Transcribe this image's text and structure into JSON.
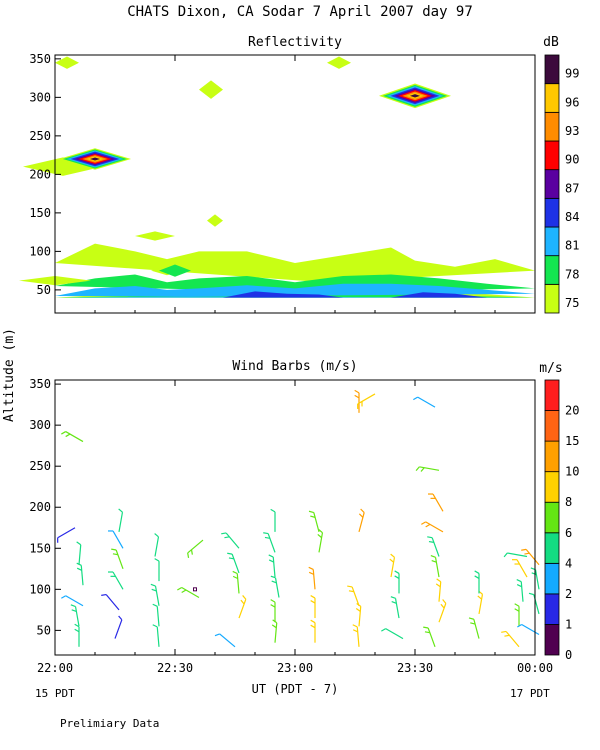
{
  "figure": {
    "title": "CHATS Dixon, CA  Sodar   7 April 2007  day  97",
    "y_axis_label": "Altitude (m)",
    "x_axis_label": "UT  (PDT - 7)",
    "left_date_label": "15 PDT",
    "right_date_label": "17 PDT",
    "footnote": "Prelimiary Data"
  },
  "colors": {
    "reflectivity_scale": [
      "#c8ff14",
      "#14e650",
      "#1eb4ff",
      "#1e32e6",
      "#5a00a0",
      "#ff0000",
      "#ff8c00",
      "#ffc800",
      "#3c0a3c"
    ],
    "wind_scale": [
      "#500050",
      "#2828e6",
      "#14aaff",
      "#14dc82",
      "#64e614",
      "#ffd200",
      "#ffa000",
      "#ff6414",
      "#ff1e1e"
    ]
  },
  "chart_data": [
    {
      "type": "heatmap",
      "title": "Reflectivity",
      "colorbar_unit": "dB",
      "colorbar_ticks": [
        "99",
        "96",
        "93",
        "90",
        "87",
        "84",
        "81",
        "78",
        "75"
      ],
      "x_ticks": [
        "22:00",
        "22:30",
        "23:00",
        "23:30",
        "00:00"
      ],
      "y_ticks": [
        "350",
        "300",
        "250",
        "200",
        "150",
        "100",
        "50"
      ],
      "x_range_minutes_after_2200": [
        0,
        120
      ],
      "ylim": [
        20,
        355
      ],
      "bands": [
        {
          "level": 75,
          "top": [
            [
              0,
              85
            ],
            [
              10,
              110
            ],
            [
              20,
              100
            ],
            [
              28,
              90
            ],
            [
              36,
              100
            ],
            [
              48,
              100
            ],
            [
              60,
              85
            ],
            [
              72,
              95
            ],
            [
              84,
              105
            ],
            [
              90,
              88
            ],
            [
              100,
              80
            ],
            [
              110,
              90
            ],
            [
              120,
              75
            ]
          ],
          "bottom": [
            [
              0,
              40
            ],
            [
              120,
              40
            ]
          ]
        },
        {
          "level": 78,
          "top": [
            [
              0,
              55
            ],
            [
              10,
              65
            ],
            [
              20,
              70
            ],
            [
              28,
              60
            ],
            [
              36,
              65
            ],
            [
              48,
              68
            ],
            [
              60,
              60
            ],
            [
              72,
              68
            ],
            [
              84,
              70
            ],
            [
              96,
              65
            ],
            [
              108,
              58
            ],
            [
              120,
              52
            ]
          ],
          "bottom": [
            [
              0,
              40
            ],
            [
              120,
              40
            ]
          ]
        },
        {
          "level": 81,
          "top": [
            [
              0,
              42
            ],
            [
              10,
              52
            ],
            [
              20,
              55
            ],
            [
              28,
              50
            ],
            [
              36,
              52
            ],
            [
              48,
              56
            ],
            [
              60,
              52
            ],
            [
              72,
              58
            ],
            [
              84,
              58
            ],
            [
              96,
              55
            ],
            [
              108,
              50
            ],
            [
              120,
              45
            ]
          ],
          "bottom": [
            [
              0,
              40
            ],
            [
              120,
              40
            ]
          ]
        },
        {
          "level": 84,
          "top": [
            [
              42,
              40
            ],
            [
              50,
              48
            ],
            [
              58,
              45
            ],
            [
              66,
              44
            ],
            [
              72,
              40
            ],
            [
              84,
              40
            ],
            [
              92,
              47
            ],
            [
              100,
              45
            ],
            [
              108,
              40
            ]
          ],
          "bottom": [
            [
              108,
              40
            ],
            [
              42,
              40
            ]
          ]
        }
      ],
      "blobs": [
        {
          "level": 75,
          "x_min": 0,
          "y": 62,
          "half_width_min": 9,
          "half_height_m": 6
        },
        {
          "level": 75,
          "x_min": 28,
          "y": 75,
          "half_width_min": 4,
          "half_height_m": 6
        },
        {
          "level": 78,
          "x_min": 30,
          "y": 75,
          "half_width_min": 4,
          "half_height_m": 8
        },
        {
          "level": 75,
          "x_min": 25,
          "y": 120,
          "half_width_min": 5,
          "half_height_m": 6
        },
        {
          "level": 75,
          "x_min": 40,
          "y": 140,
          "half_width_min": 2,
          "half_height_m": 8
        },
        {
          "level": 75,
          "x_min": 2,
          "y": 210,
          "half_width_min": 10,
          "half_height_m": 12
        },
        {
          "level": 75,
          "x_min": 39,
          "y": 310,
          "half_width_min": 3,
          "half_height_m": 12
        },
        {
          "level": 75,
          "x_min": 3,
          "y": 345,
          "half_width_min": 3,
          "half_height_m": 8
        },
        {
          "level": 75,
          "x_min": 71,
          "y": 345,
          "half_width_min": 3,
          "half_height_m": 8
        }
      ],
      "hotspots": [
        {
          "x_min": 10,
          "y": 220,
          "half_width_min": 9,
          "half_height_m": 14,
          "peak": 99
        },
        {
          "x_min": 90,
          "y": 302,
          "half_width_min": 9,
          "half_height_m": 16,
          "peak": 99
        }
      ]
    },
    {
      "type": "scatter",
      "title": "Wind Barbs (m/s)",
      "colorbar_unit": "m/s",
      "colorbar_ticks": [
        "20",
        "15",
        "10",
        "8",
        "6",
        "4",
        "2",
        "1",
        "0"
      ],
      "x_ticks": [
        "22:00",
        "22:30",
        "23:00",
        "23:30",
        "00:00"
      ],
      "y_ticks": [
        "350",
        "300",
        "250",
        "200",
        "150",
        "100",
        "50"
      ],
      "x_range_minutes_after_2200": [
        0,
        120
      ],
      "ylim": [
        20,
        355
      ],
      "barbs": [
        {
          "t": 6,
          "z": 30,
          "spd": 5,
          "dir": 0
        },
        {
          "t": 6,
          "z": 55,
          "spd": 5,
          "dir": 350
        },
        {
          "t": 7,
          "z": 80,
          "spd": 3,
          "dir": 300
        },
        {
          "t": 7,
          "z": 105,
          "spd": 5,
          "dir": 355
        },
        {
          "t": 6,
          "z": 130,
          "spd": 4,
          "dir": 5
        },
        {
          "t": 5,
          "z": 175,
          "spd": 1,
          "dir": 240
        },
        {
          "t": 7,
          "z": 280,
          "spd": 7,
          "dir": 300
        },
        {
          "t": 15,
          "z": 40,
          "spd": 1,
          "dir": 20
        },
        {
          "t": 16,
          "z": 75,
          "spd": 1,
          "dir": 320
        },
        {
          "t": 17,
          "z": 100,
          "spd": 5,
          "dir": 330
        },
        {
          "t": 17,
          "z": 125,
          "spd": 7,
          "dir": 340
        },
        {
          "t": 17,
          "z": 150,
          "spd": 3,
          "dir": 330
        },
        {
          "t": 16,
          "z": 170,
          "spd": 4,
          "dir": 10
        },
        {
          "t": 26,
          "z": 30,
          "spd": 4,
          "dir": 355
        },
        {
          "t": 26,
          "z": 55,
          "spd": 4,
          "dir": 355
        },
        {
          "t": 26,
          "z": 80,
          "spd": 5,
          "dir": 350
        },
        {
          "t": 26,
          "z": 110,
          "spd": 4,
          "dir": 0
        },
        {
          "t": 25,
          "z": 140,
          "spd": 4,
          "dir": 10
        },
        {
          "t": 35,
          "z": 100,
          "spd": 0,
          "dir": 0
        },
        {
          "t": 36,
          "z": 90,
          "spd": 6,
          "dir": 300
        },
        {
          "t": 37,
          "z": 160,
          "spd": 6,
          "dir": 230
        },
        {
          "t": 45,
          "z": 30,
          "spd": 3,
          "dir": 310
        },
        {
          "t": 46,
          "z": 65,
          "spd": 8,
          "dir": 20
        },
        {
          "t": 46,
          "z": 95,
          "spd": 6,
          "dir": 355
        },
        {
          "t": 46,
          "z": 120,
          "spd": 5,
          "dir": 340
        },
        {
          "t": 46,
          "z": 150,
          "spd": 5,
          "dir": 320
        },
        {
          "t": 55,
          "z": 35,
          "spd": 6,
          "dir": 5
        },
        {
          "t": 55,
          "z": 60,
          "spd": 6,
          "dir": 0
        },
        {
          "t": 56,
          "z": 90,
          "spd": 5,
          "dir": 350
        },
        {
          "t": 55,
          "z": 115,
          "spd": 5,
          "dir": 355
        },
        {
          "t": 55,
          "z": 145,
          "spd": 5,
          "dir": 340
        },
        {
          "t": 55,
          "z": 170,
          "spd": 4,
          "dir": 0
        },
        {
          "t": 65,
          "z": 35,
          "spd": 8,
          "dir": 0
        },
        {
          "t": 65,
          "z": 65,
          "spd": 9,
          "dir": 0
        },
        {
          "t": 65,
          "z": 100,
          "spd": 10,
          "dir": 355
        },
        {
          "t": 66,
          "z": 145,
          "spd": 6,
          "dir": 10
        },
        {
          "t": 66,
          "z": 170,
          "spd": 6,
          "dir": 345
        },
        {
          "t": 76,
          "z": 30,
          "spd": 8,
          "dir": 355
        },
        {
          "t": 76,
          "z": 55,
          "spd": 8,
          "dir": 5
        },
        {
          "t": 76,
          "z": 80,
          "spd": 8,
          "dir": 340
        },
        {
          "t": 76,
          "z": 170,
          "spd": 10,
          "dir": 15
        },
        {
          "t": 76,
          "z": 315,
          "spd": 11,
          "dir": 0
        },
        {
          "t": 80,
          "z": 338,
          "spd": 8,
          "dir": 240
        },
        {
          "t": 84,
          "z": 115,
          "spd": 9,
          "dir": 10
        },
        {
          "t": 87,
          "z": 40,
          "spd": 4,
          "dir": 300
        },
        {
          "t": 86,
          "z": 65,
          "spd": 5,
          "dir": 350
        },
        {
          "t": 86,
          "z": 95,
          "spd": 5,
          "dir": 0
        },
        {
          "t": 95,
          "z": 30,
          "spd": 7,
          "dir": 340
        },
        {
          "t": 96,
          "z": 60,
          "spd": 9,
          "dir": 20
        },
        {
          "t": 96,
          "z": 85,
          "spd": 8,
          "dir": 5
        },
        {
          "t": 96,
          "z": 115,
          "spd": 6,
          "dir": 350
        },
        {
          "t": 96,
          "z": 140,
          "spd": 5,
          "dir": 340
        },
        {
          "t": 97,
          "z": 170,
          "spd": 10,
          "dir": 300
        },
        {
          "t": 97,
          "z": 195,
          "spd": 10,
          "dir": 330
        },
        {
          "t": 96,
          "z": 245,
          "spd": 6,
          "dir": 280
        },
        {
          "t": 95,
          "z": 322,
          "spd": 2,
          "dir": 300
        },
        {
          "t": 106,
          "z": 40,
          "spd": 7,
          "dir": 345
        },
        {
          "t": 106,
          "z": 70,
          "spd": 8,
          "dir": 10
        },
        {
          "t": 106,
          "z": 95,
          "spd": 5,
          "dir": 0
        },
        {
          "t": 116,
          "z": 30,
          "spd": 8,
          "dir": 320
        },
        {
          "t": 116,
          "z": 55,
          "spd": 6,
          "dir": 0
        },
        {
          "t": 117,
          "z": 85,
          "spd": 5,
          "dir": 355
        },
        {
          "t": 118,
          "z": 115,
          "spd": 9,
          "dir": 330
        },
        {
          "t": 118,
          "z": 140,
          "spd": 4,
          "dir": 280
        },
        {
          "t": 121,
          "z": 45,
          "spd": 3,
          "dir": 300
        },
        {
          "t": 121,
          "z": 70,
          "spd": 4,
          "dir": 345
        },
        {
          "t": 121,
          "z": 100,
          "spd": 5,
          "dir": 350
        },
        {
          "t": 121,
          "z": 130,
          "spd": 10,
          "dir": 320
        }
      ]
    }
  ]
}
